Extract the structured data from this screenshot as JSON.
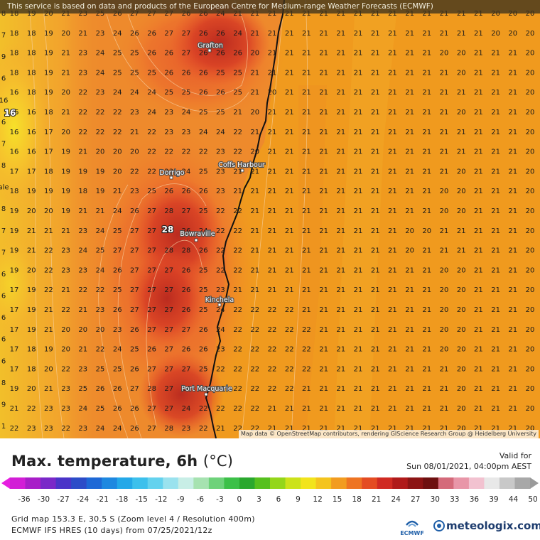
{
  "attribution_top": "This service is based on data and products of the European Centre for Medium-range Weather Forecasts (ECMWF)",
  "attribution_bottom": "Map data © OpenStreetMap contributors, rendering GIScience Research Group @ Heidelberg University",
  "title_main": "Max. temperature, 6h",
  "title_unit": "(°C)",
  "valid_label": "Valid for",
  "valid_time": "Sun 08/01/2021, 04:00pm AEST",
  "grid_info": "Grid map 153.3 E, 30.5 S (Zoom level 4 / Resolution 400m)",
  "model_info": "ECMWF IFS HRES (10 days) from 07/25/2021/12z",
  "logo_ecmwf": "ECMWF",
  "logo_meteologix": "meteologix.com",
  "legend_ticks": [
    "-36",
    "-30",
    "-27",
    "-24",
    "-21",
    "-18",
    "-15",
    "-12",
    "-9",
    "-6",
    "-3",
    "0",
    "3",
    "6",
    "9",
    "12",
    "15",
    "18",
    "21",
    "24",
    "27",
    "30",
    "33",
    "36",
    "39",
    "44",
    "50"
  ],
  "left_edge_labels": [
    "8",
    "7",
    "9",
    "6",
    "16",
    "6",
    "7",
    "8",
    "ale",
    "8",
    "7",
    "7",
    "6",
    "6",
    "6",
    "6",
    "6",
    "8",
    "9",
    "1"
  ],
  "places": [
    {
      "name": "Grafton"
    },
    {
      "name": "Coffs Harbour"
    },
    {
      "name": "Dorrigo"
    },
    {
      "name": "Bowraville"
    },
    {
      "name": "Kinchela"
    },
    {
      "name": "Port Macquarie"
    }
  ],
  "extremes": [
    {
      "value": "28"
    },
    {
      "value": "16"
    }
  ],
  "grid_rows": [
    [
      "18",
      "19",
      "20",
      "21",
      "23",
      "25",
      "26",
      "27",
      "27",
      "27",
      "26",
      "26",
      "24",
      "21",
      "21",
      "21",
      "21",
      "21",
      "21",
      "21",
      "21",
      "21",
      "21",
      "21",
      "21",
      "21",
      "21",
      "21",
      "20",
      "20",
      "20"
    ],
    [
      "18",
      "18",
      "19",
      "20",
      "21",
      "23",
      "24",
      "26",
      "26",
      "27",
      "27",
      "26",
      "26",
      "24",
      "21",
      "21",
      "21",
      "21",
      "21",
      "21",
      "21",
      "21",
      "21",
      "21",
      "21",
      "21",
      "21",
      "21",
      "20",
      "20",
      "20"
    ],
    [
      "18",
      "18",
      "19",
      "21",
      "23",
      "24",
      "25",
      "25",
      "26",
      "26",
      "27",
      "26",
      "26",
      "26",
      "20",
      "21",
      "21",
      "21",
      "21",
      "21",
      "21",
      "21",
      "21",
      "21",
      "21",
      "20",
      "20",
      "21",
      "21",
      "21",
      "20"
    ],
    [
      "18",
      "18",
      "19",
      "21",
      "23",
      "24",
      "25",
      "25",
      "25",
      "26",
      "26",
      "26",
      "25",
      "25",
      "21",
      "21",
      "21",
      "21",
      "21",
      "21",
      "21",
      "21",
      "21",
      "21",
      "21",
      "21",
      "20",
      "21",
      "21",
      "21",
      "20"
    ],
    [
      "16",
      "18",
      "19",
      "20",
      "22",
      "23",
      "24",
      "24",
      "24",
      "25",
      "25",
      "26",
      "26",
      "25",
      "21",
      "20",
      "21",
      "21",
      "21",
      "21",
      "21",
      "21",
      "21",
      "21",
      "21",
      "21",
      "21",
      "21",
      "21",
      "21",
      "20"
    ],
    [
      "16",
      "16",
      "18",
      "21",
      "22",
      "22",
      "22",
      "23",
      "24",
      "23",
      "24",
      "25",
      "25",
      "21",
      "20",
      "21",
      "21",
      "21",
      "21",
      "21",
      "21",
      "21",
      "21",
      "21",
      "21",
      "21",
      "20",
      "21",
      "21",
      "21",
      "20"
    ],
    [
      "16",
      "16",
      "17",
      "20",
      "22",
      "22",
      "22",
      "21",
      "22",
      "23",
      "23",
      "24",
      "24",
      "22",
      "21",
      "21",
      "21",
      "21",
      "21",
      "21",
      "21",
      "21",
      "21",
      "21",
      "21",
      "21",
      "21",
      "21",
      "21",
      "21",
      "20"
    ],
    [
      "16",
      "16",
      "17",
      "19",
      "21",
      "20",
      "20",
      "20",
      "22",
      "22",
      "22",
      "22",
      "23",
      "22",
      "20",
      "21",
      "21",
      "21",
      "21",
      "21",
      "21",
      "21",
      "21",
      "21",
      "21",
      "21",
      "21",
      "21",
      "21",
      "21",
      "20"
    ],
    [
      "17",
      "17",
      "18",
      "19",
      "19",
      "19",
      "20",
      "22",
      "22",
      "23",
      "24",
      "25",
      "23",
      "21",
      "21",
      "21",
      "21",
      "21",
      "21",
      "21",
      "21",
      "21",
      "21",
      "21",
      "21",
      "21",
      "20",
      "21",
      "21",
      "21",
      "20"
    ],
    [
      "18",
      "19",
      "19",
      "19",
      "18",
      "19",
      "21",
      "23",
      "25",
      "26",
      "26",
      "26",
      "23",
      "21",
      "21",
      "21",
      "21",
      "21",
      "21",
      "21",
      "21",
      "21",
      "21",
      "21",
      "21",
      "20",
      "20",
      "21",
      "21",
      "21",
      "20"
    ],
    [
      "19",
      "20",
      "20",
      "19",
      "21",
      "21",
      "24",
      "26",
      "27",
      "28",
      "27",
      "25",
      "22",
      "22",
      "21",
      "21",
      "21",
      "21",
      "21",
      "21",
      "21",
      "21",
      "21",
      "21",
      "21",
      "20",
      "20",
      "21",
      "21",
      "21",
      "20"
    ],
    [
      "19",
      "21",
      "21",
      "21",
      "23",
      "24",
      "25",
      "27",
      "27",
      "28",
      "26",
      "24",
      "22",
      "22",
      "21",
      "21",
      "21",
      "21",
      "21",
      "21",
      "21",
      "21",
      "21",
      "20",
      "20",
      "21",
      "21",
      "21",
      "21",
      "21",
      "20"
    ],
    [
      "19",
      "21",
      "22",
      "23",
      "24",
      "25",
      "27",
      "27",
      "27",
      "28",
      "28",
      "26",
      "22",
      "22",
      "21",
      "21",
      "21",
      "21",
      "21",
      "21",
      "21",
      "21",
      "21",
      "20",
      "21",
      "21",
      "21",
      "21",
      "21",
      "21",
      "20"
    ],
    [
      "19",
      "20",
      "22",
      "23",
      "23",
      "24",
      "26",
      "27",
      "27",
      "27",
      "26",
      "25",
      "22",
      "22",
      "21",
      "21",
      "21",
      "21",
      "21",
      "21",
      "21",
      "21",
      "21",
      "21",
      "21",
      "20",
      "20",
      "21",
      "21",
      "21",
      "20"
    ],
    [
      "17",
      "19",
      "22",
      "21",
      "22",
      "22",
      "25",
      "27",
      "27",
      "27",
      "26",
      "25",
      "23",
      "21",
      "21",
      "21",
      "21",
      "21",
      "21",
      "21",
      "21",
      "21",
      "21",
      "21",
      "21",
      "20",
      "20",
      "21",
      "21",
      "21",
      "20"
    ],
    [
      "17",
      "19",
      "21",
      "22",
      "21",
      "23",
      "26",
      "27",
      "27",
      "27",
      "26",
      "25",
      "24",
      "22",
      "22",
      "22",
      "22",
      "21",
      "21",
      "21",
      "21",
      "21",
      "21",
      "21",
      "21",
      "20",
      "20",
      "21",
      "21",
      "21",
      "20"
    ],
    [
      "17",
      "19",
      "21",
      "20",
      "20",
      "20",
      "23",
      "26",
      "27",
      "27",
      "27",
      "26",
      "24",
      "22",
      "22",
      "22",
      "22",
      "22",
      "21",
      "21",
      "21",
      "21",
      "21",
      "21",
      "21",
      "20",
      "20",
      "21",
      "21",
      "21",
      "20"
    ],
    [
      "17",
      "18",
      "19",
      "20",
      "21",
      "22",
      "24",
      "25",
      "26",
      "27",
      "26",
      "26",
      "23",
      "22",
      "22",
      "22",
      "22",
      "22",
      "21",
      "21",
      "21",
      "21",
      "21",
      "21",
      "21",
      "20",
      "20",
      "21",
      "21",
      "21",
      "20"
    ],
    [
      "17",
      "18",
      "20",
      "22",
      "23",
      "25",
      "25",
      "26",
      "27",
      "27",
      "27",
      "25",
      "22",
      "22",
      "22",
      "22",
      "22",
      "22",
      "21",
      "21",
      "21",
      "21",
      "21",
      "21",
      "21",
      "21",
      "20",
      "21",
      "21",
      "21",
      "20"
    ],
    [
      "19",
      "20",
      "21",
      "23",
      "25",
      "26",
      "26",
      "27",
      "28",
      "27",
      "26",
      "23",
      "22",
      "22",
      "22",
      "22",
      "22",
      "21",
      "21",
      "21",
      "21",
      "21",
      "21",
      "21",
      "21",
      "21",
      "20",
      "21",
      "21",
      "21",
      "20"
    ],
    [
      "21",
      "22",
      "23",
      "23",
      "24",
      "25",
      "26",
      "26",
      "27",
      "27",
      "24",
      "22",
      "22",
      "22",
      "22",
      "21",
      "21",
      "21",
      "21",
      "21",
      "21",
      "21",
      "21",
      "21",
      "21",
      "21",
      "20",
      "21",
      "21",
      "21",
      "20"
    ],
    [
      "22",
      "23",
      "23",
      "22",
      "23",
      "24",
      "24",
      "26",
      "27",
      "28",
      "23",
      "22",
      "21",
      "22",
      "22",
      "21",
      "21",
      "21",
      "21",
      "21",
      "21",
      "21",
      "21",
      "21",
      "21",
      "21",
      "20",
      "21",
      "21",
      "21",
      "20"
    ]
  ]
}
